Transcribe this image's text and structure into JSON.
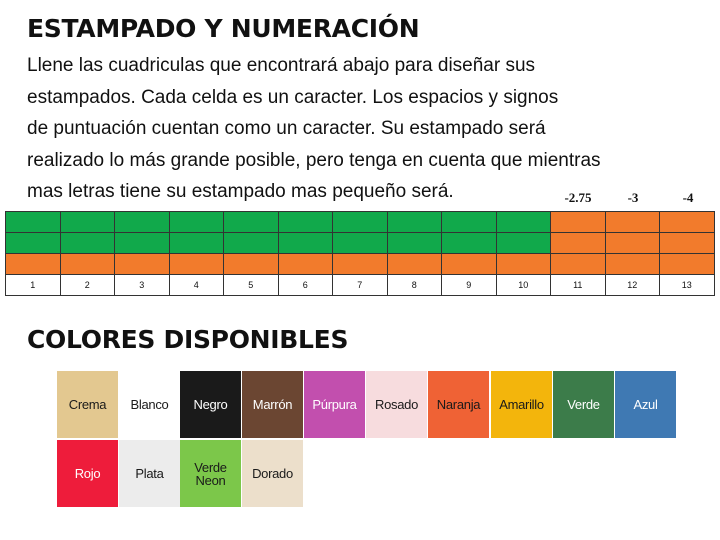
{
  "title": "ESTAMPADO Y NUMERACIÓN",
  "intro_lines": [
    "Llene las cuadriculas que encontrará abajo para diseñar sus",
    "estampados. Cada celda es un caracter. Los espacios y signos",
    "de puntuación cuentan como un caracter. Su estampado será",
    "realizado lo más grande posible, pero tenga en cuenta que mientras",
    "mas letras tiene su estampado mas pequeño será."
  ],
  "size_labels": [
    "-2.75",
    "-3",
    "-4"
  ],
  "grid": {
    "column_numbers": [
      "1",
      "2",
      "3",
      "4",
      "5",
      "6",
      "7",
      "8",
      "9",
      "10",
      "11",
      "12",
      "13"
    ],
    "colors": {
      "green": "#11a94b",
      "orange": "#f27b2c"
    }
  },
  "colors_title": "COLORES DISPONIBLES",
  "colors": [
    {
      "label": "Crema",
      "bg": "#e3c890",
      "fg": "#1a1a1a"
    },
    {
      "label": "Blanco",
      "bg": "#ffffff",
      "fg": "#1a1a1a"
    },
    {
      "label": "Negro",
      "bg": "#1a1a1a",
      "fg": "#ffffff"
    },
    {
      "label": "Marrón",
      "bg": "#6b4632",
      "fg": "#ffffff"
    },
    {
      "label": "Púrpura",
      "bg": "#c24fae",
      "fg": "#ffffff"
    },
    {
      "label": "Rosado",
      "bg": "#f7dcde",
      "fg": "#1a1a1a"
    },
    {
      "label": "Naranja",
      "bg": "#ef6235",
      "fg": "#1a1a1a"
    },
    {
      "label": "Amarillo",
      "bg": "#f3b50c",
      "fg": "#1a1a1a"
    },
    {
      "label": "Verde",
      "bg": "#3c7c4a",
      "fg": "#ffffff"
    },
    {
      "label": "Azul",
      "bg": "#3f79b3",
      "fg": "#ffffff"
    },
    {
      "label": "Rojo",
      "bg": "#ee1c3b",
      "fg": "#ffffff"
    },
    {
      "label": "Plata",
      "bg": "#ececec",
      "fg": "#1a1a1a"
    },
    {
      "label": "Verde Neon",
      "bg": "#7cc74a",
      "fg": "#1a1a1a"
    },
    {
      "label": "Dorado",
      "bg": "#ecdfcb",
      "fg": "#1a1a1a"
    }
  ]
}
